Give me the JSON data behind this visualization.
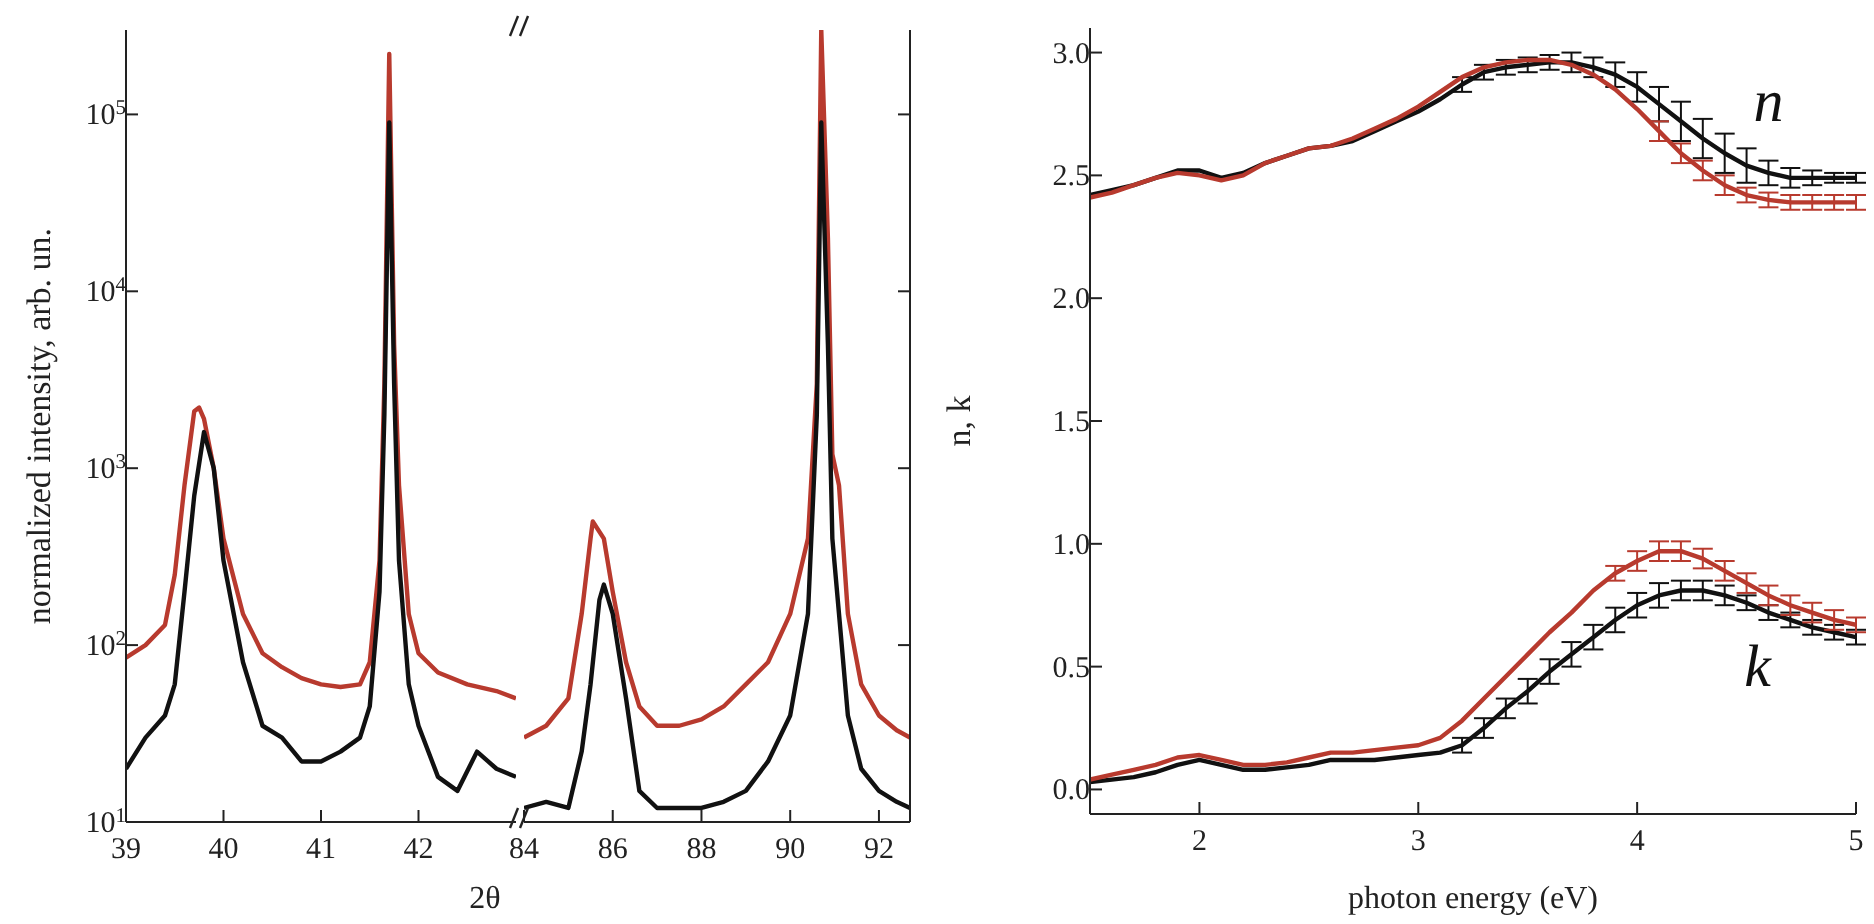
{
  "chart_data": [
    {
      "type": "line",
      "ylabel": "normalized intensity, arb. un.",
      "xlabel": "2θ",
      "log": "y",
      "xlim": [
        39,
        43
      ],
      "xticks": [
        39,
        40,
        41,
        42
      ],
      "ylim": [
        10,
        300000
      ],
      "yticks": [
        {
          "value": 10,
          "label": "10$^{1}$"
        },
        {
          "value": 100,
          "label": "10$^{2}$"
        },
        {
          "value": 1000,
          "label": "10$^{3}$"
        },
        {
          "value": 10000,
          "label": "10$^{4}$"
        },
        {
          "value": 100000,
          "label": "10$^{5}$"
        }
      ],
      "marker": "none",
      "series": [
        {
          "color": "#b83a2e",
          "x": [
            39.0,
            39.2,
            39.4,
            39.5,
            39.6,
            39.7,
            39.75,
            39.8,
            39.9,
            40.0,
            40.2,
            40.4,
            40.6,
            40.8,
            41.0,
            41.2,
            41.4,
            41.5,
            41.6,
            41.65,
            41.7,
            41.75,
            41.8,
            41.9,
            42.0,
            42.2,
            42.5,
            42.8,
            43.0
          ],
          "values": [
            85,
            100,
            130,
            250,
            800,
            2100,
            2200,
            1900,
            1000,
            400,
            150,
            90,
            75,
            65,
            60,
            58,
            60,
            80,
            300,
            3000,
            220000,
            5000,
            800,
            150,
            90,
            70,
            60,
            55,
            50
          ]
        },
        {
          "color": "#111111",
          "x": [
            39.0,
            39.2,
            39.4,
            39.5,
            39.6,
            39.7,
            39.8,
            39.9,
            40.0,
            40.2,
            40.4,
            40.6,
            40.8,
            41.0,
            41.2,
            41.4,
            41.5,
            41.6,
            41.65,
            41.7,
            41.75,
            41.8,
            41.9,
            42.0,
            42.2,
            42.4,
            42.6,
            42.8,
            43.0
          ],
          "values": [
            20,
            30,
            40,
            60,
            200,
            700,
            1600,
            1000,
            300,
            80,
            35,
            30,
            22,
            22,
            25,
            30,
            45,
            200,
            2000,
            90000,
            3000,
            300,
            60,
            35,
            18,
            15,
            25,
            20,
            18
          ]
        }
      ]
    },
    {
      "type": "line",
      "tick_labels": "x",
      "log": "y",
      "xlim": [
        84,
        92.7
      ],
      "xticks": [
        84,
        86,
        88,
        90,
        92
      ],
      "ylim": [
        10,
        300000
      ],
      "yticks": [
        {
          "value": 10,
          "label": null
        },
        {
          "value": 100,
          "label": null
        },
        {
          "value": 1000,
          "label": null
        },
        {
          "value": 10000,
          "label": null
        },
        {
          "value": 100000,
          "label": null
        }
      ],
      "marker": "none",
      "series": [
        {
          "color": "#b83a2e",
          "x": [
            84.0,
            84.5,
            85.0,
            85.3,
            85.5,
            85.55,
            85.8,
            86.0,
            86.3,
            86.6,
            87.0,
            87.5,
            88.0,
            88.5,
            89.0,
            89.5,
            90.0,
            90.4,
            90.6,
            90.7,
            90.85,
            90.95,
            91.1,
            91.3,
            91.6,
            92.0,
            92.4,
            92.7
          ],
          "values": [
            30,
            35,
            50,
            150,
            400,
            500,
            400,
            200,
            80,
            45,
            35,
            35,
            38,
            45,
            60,
            80,
            150,
            400,
            3000,
            300000,
            20000,
            1200,
            800,
            150,
            60,
            40,
            33,
            30
          ]
        },
        {
          "color": "#111111",
          "x": [
            84.0,
            84.5,
            85.0,
            85.3,
            85.5,
            85.7,
            85.8,
            86.0,
            86.3,
            86.6,
            87.0,
            87.5,
            88.0,
            88.5,
            89.0,
            89.5,
            90.0,
            90.4,
            90.6,
            90.7,
            90.85,
            90.95,
            91.1,
            91.3,
            91.6,
            92.0,
            92.4,
            92.7
          ],
          "values": [
            12,
            13,
            12,
            25,
            60,
            180,
            220,
            150,
            50,
            15,
            12,
            12,
            12,
            13,
            15,
            22,
            40,
            150,
            2000,
            90000,
            5000,
            400,
            150,
            40,
            20,
            15,
            13,
            12
          ]
        }
      ]
    },
    {
      "type": "line",
      "xlabel": "photon energy (eV)",
      "ylabel": "n, k",
      "xlim": [
        1.5,
        5
      ],
      "xticks": [
        2,
        3,
        4,
        5
      ],
      "ylim": [
        -0.1,
        3.1
      ],
      "yticks": [
        {
          "value": 0,
          "label": "0.0"
        },
        {
          "value": 0.5,
          "label": "0.5"
        },
        {
          "value": 1,
          "label": "1.0"
        },
        {
          "value": 1.5,
          "label": "1.5"
        },
        {
          "value": 2,
          "label": "2.0"
        },
        {
          "value": 2.5,
          "label": "2.5"
        },
        {
          "value": 3,
          "label": "3.0"
        }
      ],
      "marker": "none",
      "annotations": [
        "n",
        "k"
      ],
      "x": [
        1.5,
        1.6,
        1.7,
        1.8,
        1.9,
        2.0,
        2.1,
        2.2,
        2.3,
        2.4,
        2.5,
        2.6,
        2.7,
        2.8,
        2.9,
        3.0,
        3.1,
        3.2,
        3.3,
        3.4,
        3.5,
        3.6,
        3.7,
        3.8,
        3.9,
        4.0,
        4.1,
        4.2,
        4.3,
        4.4,
        4.5,
        4.6,
        4.7,
        4.8,
        4.9,
        5.0
      ],
      "series": [
        {
          "color": "#111111",
          "values": [
            2.42,
            2.44,
            2.46,
            2.49,
            2.52,
            2.52,
            2.49,
            2.51,
            2.55,
            2.58,
            2.61,
            2.62,
            2.64,
            2.68,
            2.72,
            2.76,
            2.81,
            2.87,
            2.92,
            2.94,
            2.95,
            2.96,
            2.96,
            2.94,
            2.91,
            2.86,
            2.79,
            2.72,
            2.65,
            2.59,
            2.54,
            2.51,
            2.49,
            2.49,
            2.49,
            2.49
          ],
          "errors": [
            null,
            null,
            null,
            null,
            null,
            null,
            null,
            null,
            null,
            null,
            null,
            null,
            null,
            null,
            null,
            null,
            null,
            0.03,
            0.03,
            0.03,
            0.03,
            0.03,
            0.04,
            0.04,
            0.05,
            0.06,
            0.07,
            0.08,
            0.08,
            0.08,
            0.07,
            0.05,
            0.04,
            0.03,
            0.02,
            0.02
          ]
        },
        {
          "color": "#b83a2e",
          "values": [
            2.41,
            2.43,
            2.46,
            2.49,
            2.51,
            2.5,
            2.48,
            2.5,
            2.55,
            2.58,
            2.61,
            2.62,
            2.65,
            2.69,
            2.73,
            2.78,
            2.84,
            2.9,
            2.94,
            2.96,
            2.97,
            2.97,
            2.95,
            2.91,
            2.85,
            2.77,
            2.68,
            2.59,
            2.52,
            2.46,
            2.42,
            2.4,
            2.39,
            2.39,
            2.39,
            2.39
          ],
          "errors": [
            null,
            null,
            null,
            null,
            null,
            null,
            null,
            null,
            null,
            null,
            null,
            null,
            null,
            null,
            null,
            null,
            null,
            null,
            null,
            null,
            null,
            null,
            null,
            null,
            null,
            null,
            0.04,
            0.04,
            0.04,
            0.04,
            0.03,
            0.03,
            0.03,
            0.03,
            0.03,
            0.03
          ]
        },
        {
          "color": "#111111",
          "values": [
            0.03,
            0.04,
            0.05,
            0.07,
            0.1,
            0.12,
            0.1,
            0.08,
            0.08,
            0.09,
            0.1,
            0.12,
            0.12,
            0.12,
            0.13,
            0.14,
            0.15,
            0.18,
            0.25,
            0.33,
            0.4,
            0.48,
            0.55,
            0.62,
            0.69,
            0.75,
            0.79,
            0.81,
            0.81,
            0.79,
            0.76,
            0.72,
            0.69,
            0.66,
            0.64,
            0.62
          ],
          "errors": [
            null,
            null,
            null,
            null,
            null,
            null,
            null,
            null,
            null,
            null,
            null,
            null,
            null,
            null,
            null,
            null,
            null,
            0.03,
            0.04,
            0.04,
            0.05,
            0.05,
            0.05,
            0.05,
            0.05,
            0.05,
            0.05,
            0.04,
            0.04,
            0.04,
            0.03,
            0.03,
            0.03,
            0.03,
            0.03,
            0.03
          ]
        },
        {
          "color": "#b83a2e",
          "values": [
            0.04,
            0.06,
            0.08,
            0.1,
            0.13,
            0.14,
            0.12,
            0.1,
            0.1,
            0.11,
            0.13,
            0.15,
            0.15,
            0.16,
            0.17,
            0.18,
            0.21,
            0.28,
            0.37,
            0.46,
            0.55,
            0.64,
            0.72,
            0.81,
            0.88,
            0.93,
            0.97,
            0.97,
            0.94,
            0.89,
            0.84,
            0.79,
            0.75,
            0.72,
            0.69,
            0.67
          ],
          "errors": [
            null,
            null,
            null,
            null,
            null,
            null,
            null,
            null,
            null,
            null,
            null,
            null,
            null,
            null,
            null,
            null,
            null,
            null,
            null,
            null,
            null,
            null,
            null,
            null,
            0.03,
            0.04,
            0.04,
            0.04,
            0.04,
            0.04,
            0.04,
            0.04,
            0.04,
            0.04,
            0.04,
            0.03
          ]
        }
      ]
    }
  ]
}
